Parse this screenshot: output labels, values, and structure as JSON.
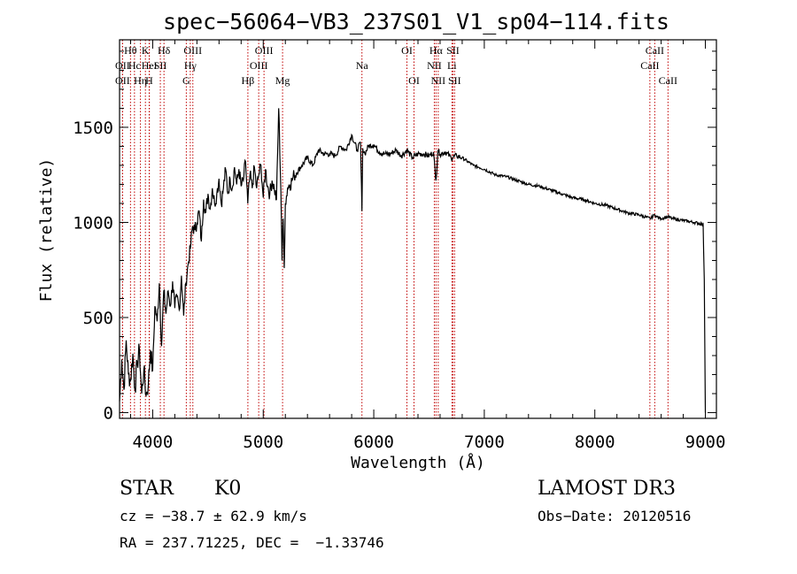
{
  "chart_data": {
    "type": "line",
    "title": "spec−56064−VB3_237S01_V1_sp04−114.fits",
    "xlabel": "Wavelength (Å)",
    "ylabel": "Flux (relative)",
    "xlim": [
      3700,
      9100
    ],
    "ylim": [
      -30,
      1960
    ],
    "x_ticks": [
      4000,
      5000,
      6000,
      7000,
      8000,
      9000
    ],
    "y_ticks": [
      0,
      500,
      1000,
      1500
    ],
    "series": [
      {
        "name": "spectrum",
        "x": [
          3700,
          3720,
          3740,
          3760,
          3780,
          3800,
          3820,
          3840,
          3860,
          3880,
          3900,
          3920,
          3940,
          3960,
          3980,
          4000,
          4020,
          4040,
          4060,
          4080,
          4100,
          4120,
          4140,
          4160,
          4180,
          4200,
          4220,
          4240,
          4260,
          4280,
          4300,
          4320,
          4340,
          4360,
          4380,
          4400,
          4420,
          4440,
          4460,
          4480,
          4500,
          4520,
          4540,
          4560,
          4580,
          4600,
          4620,
          4640,
          4660,
          4680,
          4700,
          4720,
          4740,
          4760,
          4780,
          4800,
          4820,
          4840,
          4860,
          4880,
          4900,
          4920,
          4940,
          4960,
          4980,
          5000,
          5020,
          5040,
          5060,
          5080,
          5100,
          5120,
          5140,
          5160,
          5170,
          5180,
          5190,
          5200,
          5220,
          5240,
          5260,
          5280,
          5300,
          5350,
          5400,
          5450,
          5500,
          5550,
          5600,
          5650,
          5700,
          5750,
          5800,
          5850,
          5880,
          5893,
          5900,
          5920,
          5950,
          6000,
          6050,
          6100,
          6150,
          6200,
          6250,
          6300,
          6350,
          6400,
          6450,
          6500,
          6540,
          6563,
          6580,
          6600,
          6650,
          6700,
          6750,
          6800,
          6850,
          6900,
          6950,
          7000,
          7100,
          7200,
          7300,
          7400,
          7500,
          7600,
          7700,
          7800,
          7900,
          8000,
          8100,
          8200,
          8300,
          8400,
          8500,
          8542,
          8560,
          8600,
          8662,
          8700,
          8800,
          8900,
          8980,
          8990,
          9000
        ],
        "values": [
          60,
          280,
          120,
          380,
          200,
          170,
          310,
          120,
          260,
          330,
          100,
          230,
          90,
          150,
          330,
          220,
          560,
          480,
          680,
          350,
          640,
          520,
          640,
          560,
          690,
          550,
          610,
          540,
          720,
          510,
          680,
          780,
          860,
          980,
          960,
          1000,
          1060,
          900,
          1120,
          1050,
          1150,
          1070,
          1180,
          1100,
          1150,
          1230,
          1100,
          1180,
          1280,
          1150,
          1230,
          1180,
          1290,
          1200,
          1280,
          1190,
          1220,
          1320,
          1100,
          1250,
          1180,
          1290,
          1180,
          1250,
          1300,
          1130,
          1280,
          1190,
          1150,
          1220,
          1180,
          1120,
          1600,
          1160,
          800,
          1020,
          760,
          1100,
          1180,
          1200,
          1220,
          1250,
          1260,
          1300,
          1340,
          1300,
          1380,
          1360,
          1360,
          1350,
          1400,
          1380,
          1460,
          1380,
          1420,
          1060,
          1390,
          1360,
          1400,
          1410,
          1370,
          1360,
          1360,
          1380,
          1350,
          1380,
          1340,
          1360,
          1360,
          1350,
          1370,
          1220,
          1380,
          1360,
          1370,
          1340,
          1350,
          1340,
          1320,
          1300,
          1290,
          1280,
          1250,
          1240,
          1220,
          1200,
          1190,
          1170,
          1150,
          1130,
          1120,
          1100,
          1090,
          1070,
          1050,
          1040,
          1020,
          1040,
          1030,
          1020,
          1030,
          1020,
          1010,
          1000,
          990,
          700,
          0
        ]
      }
    ],
    "lines": [
      {
        "wl": 3799,
        "label": "Hθ",
        "row": 1
      },
      {
        "wl": 3727,
        "label": "OII",
        "row": 2
      },
      {
        "wl": 3727,
        "label": "OII",
        "row": 3
      },
      {
        "wl": 3835,
        "label": "Hc",
        "row": 2
      },
      {
        "wl": 3889,
        "label": "Hη",
        "row": 3
      },
      {
        "wl": 3934,
        "label": "K",
        "row": 1
      },
      {
        "wl": 3970,
        "label": "HeI",
        "row": 2
      },
      {
        "wl": 3968,
        "label": "H",
        "row": 3
      },
      {
        "wl": 4069,
        "label": "SII",
        "row": 2
      },
      {
        "wl": 4102,
        "label": "Hδ",
        "row": 1
      },
      {
        "wl": 4304,
        "label": "G",
        "row": 3
      },
      {
        "wl": 4340,
        "label": "Hγ",
        "row": 2
      },
      {
        "wl": 4363,
        "label": "OIII",
        "row": 1
      },
      {
        "wl": 4861,
        "label": "Hβ",
        "row": 3
      },
      {
        "wl": 4959,
        "label": "OIII",
        "row": 2
      },
      {
        "wl": 5007,
        "label": "OIII",
        "row": 1
      },
      {
        "wl": 5175,
        "label": "Mg",
        "row": 3
      },
      {
        "wl": 5893,
        "label": "Na",
        "row": 2
      },
      {
        "wl": 6300,
        "label": "OI",
        "row": 1
      },
      {
        "wl": 6364,
        "label": "OI",
        "row": 3
      },
      {
        "wl": 6548,
        "label": "NII",
        "row": 2
      },
      {
        "wl": 6563,
        "label": "Hα",
        "row": 1
      },
      {
        "wl": 6583,
        "label": "NII",
        "row": 3
      },
      {
        "wl": 6707,
        "label": "Li",
        "row": 2
      },
      {
        "wl": 6716,
        "label": "SII",
        "row": 1
      },
      {
        "wl": 6731,
        "label": "SII",
        "row": 3
      },
      {
        "wl": 8498,
        "label": "CaII",
        "row": 2
      },
      {
        "wl": 8542,
        "label": "CaII",
        "row": 1
      },
      {
        "wl": 8662,
        "label": "CaII",
        "row": 3
      }
    ]
  },
  "info": {
    "class": "STAR",
    "subclass": "K0",
    "survey": "LAMOST DR3",
    "cz": "cz = −38.7 ± 62.9 km/s",
    "obs_date": "Obs−Date: 20120516",
    "radec": "RA = 237.71225, DEC =  −1.33746"
  }
}
